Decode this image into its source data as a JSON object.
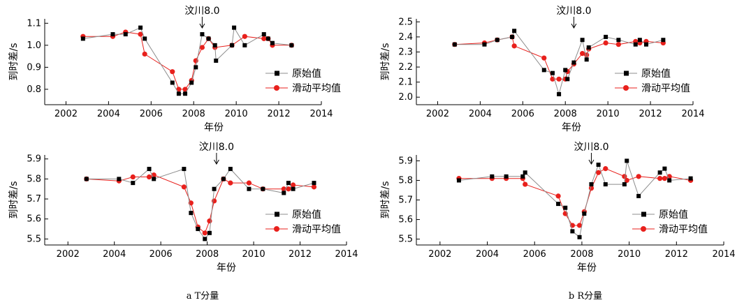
{
  "colors": {
    "original": "#000000",
    "original_line": "#8c8c8c",
    "smoothed": "#e8201c",
    "smoothed_line": "#e8201c"
  },
  "chart_data": [
    {
      "id": "p1",
      "type": "line",
      "xlabel": "年份",
      "ylabel": "到时差/s",
      "xlim": [
        2001,
        2014
      ],
      "ylim": [
        0.73,
        1.12
      ],
      "xticks": [
        2002,
        2004,
        2006,
        2008,
        2010,
        2012,
        2014
      ],
      "yticks": [
        0.8,
        0.9,
        1.0,
        1.1
      ],
      "ytick_labels": [
        "0.8",
        "0.9",
        "1.0",
        "1.1"
      ],
      "annotation": {
        "text": "汶川8.0",
        "x": 2008.4
      },
      "legend": {
        "position": "right",
        "entries": [
          "原始值",
          "滑动平均值"
        ]
      },
      "series": [
        {
          "name": "原始值",
          "marker": "square",
          "x": [
            2002.8,
            2004.2,
            2004.8,
            2005.5,
            2005.7,
            2007.0,
            2007.3,
            2007.6,
            2007.9,
            2008.1,
            2008.4,
            2008.7,
            2009.0,
            2009.05,
            2009.8,
            2009.9,
            2010.4,
            2011.3,
            2011.5,
            2011.7,
            2012.6
          ],
          "y": [
            1.03,
            1.05,
            1.05,
            1.08,
            1.03,
            0.83,
            0.78,
            0.78,
            0.83,
            0.9,
            1.05,
            1.03,
            1.0,
            0.93,
            1.0,
            1.08,
            1.0,
            1.05,
            1.03,
            1.01,
            1.0
          ]
        },
        {
          "name": "滑动平均值",
          "marker": "circle",
          "x": [
            2002.8,
            2004.2,
            2004.8,
            2005.5,
            2005.7,
            2007.0,
            2007.3,
            2007.6,
            2007.9,
            2008.1,
            2008.4,
            2008.7,
            2009.0,
            2009.8,
            2010.4,
            2011.3,
            2011.5,
            2011.7,
            2012.6
          ],
          "y": [
            1.04,
            1.04,
            1.06,
            1.05,
            0.96,
            0.88,
            0.8,
            0.8,
            0.84,
            0.93,
            0.99,
            1.03,
            0.99,
            1.0,
            1.04,
            1.03,
            1.03,
            1.0,
            1.0
          ]
        }
      ]
    },
    {
      "id": "p2",
      "type": "line",
      "xlabel": "年份",
      "ylabel": "到时差/s",
      "xlim": [
        2001,
        2014
      ],
      "ylim": [
        1.95,
        2.52
      ],
      "xticks": [
        2002,
        2004,
        2006,
        2008,
        2010,
        2012,
        2014
      ],
      "yticks": [
        2.0,
        2.1,
        2.2,
        2.3,
        2.4,
        2.5
      ],
      "ytick_labels": [
        "2.0",
        "2.1",
        "2.2",
        "2.3",
        "2.4",
        "2.5"
      ],
      "annotation": {
        "text": "汶川8.0",
        "x": 2008.4
      },
      "legend": {
        "position": "right",
        "entries": [
          "原始值",
          "滑动平均值"
        ]
      },
      "series": [
        {
          "name": "原始值",
          "marker": "square",
          "x": [
            2002.8,
            2004.2,
            2004.8,
            2005.5,
            2005.6,
            2007.0,
            2007.4,
            2007.7,
            2008.0,
            2008.1,
            2008.4,
            2008.8,
            2009.0,
            2009.1,
            2009.9,
            2010.5,
            2011.3,
            2011.5,
            2011.8,
            2012.6
          ],
          "y": [
            2.35,
            2.35,
            2.38,
            2.4,
            2.44,
            2.18,
            2.16,
            2.02,
            2.18,
            2.12,
            2.23,
            2.38,
            2.25,
            2.33,
            2.4,
            2.38,
            2.35,
            2.38,
            2.35,
            2.38
          ]
        },
        {
          "name": "滑动平均值",
          "marker": "circle",
          "x": [
            2002.8,
            2004.2,
            2004.8,
            2005.5,
            2005.6,
            2007.0,
            2007.4,
            2007.7,
            2008.0,
            2008.1,
            2008.4,
            2008.8,
            2009.0,
            2009.1,
            2009.9,
            2010.5,
            2011.3,
            2011.5,
            2011.8,
            2012.6
          ],
          "y": [
            2.35,
            2.36,
            2.38,
            2.4,
            2.34,
            2.26,
            2.12,
            2.12,
            2.12,
            2.17,
            2.22,
            2.29,
            2.28,
            2.32,
            2.36,
            2.35,
            2.37,
            2.36,
            2.37,
            2.36
          ]
        }
      ]
    },
    {
      "id": "p3",
      "type": "line",
      "xlabel": "年份",
      "ylabel": "到时差/s",
      "xlim": [
        2001,
        2014
      ],
      "ylim": [
        5.47,
        5.92
      ],
      "xticks": [
        2002,
        2004,
        2006,
        2008,
        2010,
        2012,
        2014
      ],
      "yticks": [
        5.5,
        5.6,
        5.7,
        5.8,
        5.9
      ],
      "ytick_labels": [
        "5.5",
        "5.6",
        "5.7",
        "5.8",
        "5.9"
      ],
      "annotation": {
        "text": "汶川8.0",
        "x": 2008.4
      },
      "legend": {
        "position": "right",
        "entries": [
          "原始值",
          "滑动平均值"
        ]
      },
      "series": [
        {
          "name": "原始值",
          "marker": "square",
          "x": [
            2002.8,
            2004.2,
            2004.8,
            2005.5,
            2005.7,
            2007.0,
            2007.3,
            2007.6,
            2007.9,
            2008.1,
            2008.3,
            2008.7,
            2009.0,
            2009.8,
            2010.4,
            2011.3,
            2011.5,
            2011.7,
            2012.6
          ],
          "y": [
            5.8,
            5.8,
            5.78,
            5.85,
            5.8,
            5.85,
            5.63,
            5.55,
            5.5,
            5.53,
            5.75,
            5.8,
            5.85,
            5.75,
            5.75,
            5.73,
            5.78,
            5.75,
            5.78
          ]
        },
        {
          "name": "滑动平均值",
          "marker": "circle",
          "x": [
            2002.8,
            2004.2,
            2004.8,
            2005.5,
            2005.7,
            2007.0,
            2007.3,
            2007.6,
            2007.9,
            2008.1,
            2008.3,
            2008.7,
            2009.0,
            2009.8,
            2010.4,
            2011.3,
            2011.5,
            2011.7,
            2012.6
          ],
          "y": [
            5.8,
            5.79,
            5.81,
            5.81,
            5.82,
            5.76,
            5.68,
            5.56,
            5.53,
            5.59,
            5.69,
            5.8,
            5.78,
            5.78,
            5.75,
            5.75,
            5.75,
            5.77,
            5.76
          ]
        }
      ]
    },
    {
      "id": "p4",
      "type": "line",
      "xlabel": "年份",
      "ylabel": "到时差/s",
      "xlim": [
        2001,
        2014
      ],
      "ylim": [
        5.47,
        5.93
      ],
      "xticks": [
        2002,
        2004,
        2006,
        2008,
        2010,
        2012,
        2014
      ],
      "yticks": [
        5.5,
        5.6,
        5.7,
        5.8,
        5.9
      ],
      "ytick_labels": [
        "5.5",
        "5.6",
        "5.7",
        "5.8",
        "5.9"
      ],
      "annotation": {
        "text": "汶川8.0",
        "x": 2008.4
      },
      "legend": {
        "position": "right",
        "entries": [
          "原始值",
          "滑动平均值"
        ]
      },
      "series": [
        {
          "name": "原始值",
          "marker": "square",
          "x": [
            2002.8,
            2004.2,
            2004.8,
            2005.5,
            2005.6,
            2007.0,
            2007.3,
            2007.6,
            2007.9,
            2008.1,
            2008.4,
            2008.7,
            2009.0,
            2009.8,
            2009.9,
            2010.4,
            2011.3,
            2011.5,
            2011.7,
            2012.6
          ],
          "y": [
            5.8,
            5.82,
            5.82,
            5.82,
            5.84,
            5.68,
            5.66,
            5.54,
            5.51,
            5.63,
            5.78,
            5.88,
            5.78,
            5.78,
            5.9,
            5.72,
            5.84,
            5.86,
            5.8,
            5.81
          ]
        },
        {
          "name": "滑动平均值",
          "marker": "circle",
          "x": [
            2002.8,
            2004.2,
            2004.8,
            2005.5,
            2005.6,
            2007.0,
            2007.3,
            2007.6,
            2007.9,
            2008.1,
            2008.4,
            2008.7,
            2009.0,
            2009.8,
            2009.9,
            2010.4,
            2011.3,
            2011.5,
            2011.7,
            2012.6
          ],
          "y": [
            5.81,
            5.81,
            5.81,
            5.81,
            5.78,
            5.72,
            5.63,
            5.57,
            5.57,
            5.64,
            5.76,
            5.84,
            5.86,
            5.82,
            5.8,
            5.82,
            5.81,
            5.81,
            5.82,
            5.8
          ]
        }
      ]
    }
  ],
  "captions": {
    "a": "a T分量",
    "b": "b R分量"
  }
}
